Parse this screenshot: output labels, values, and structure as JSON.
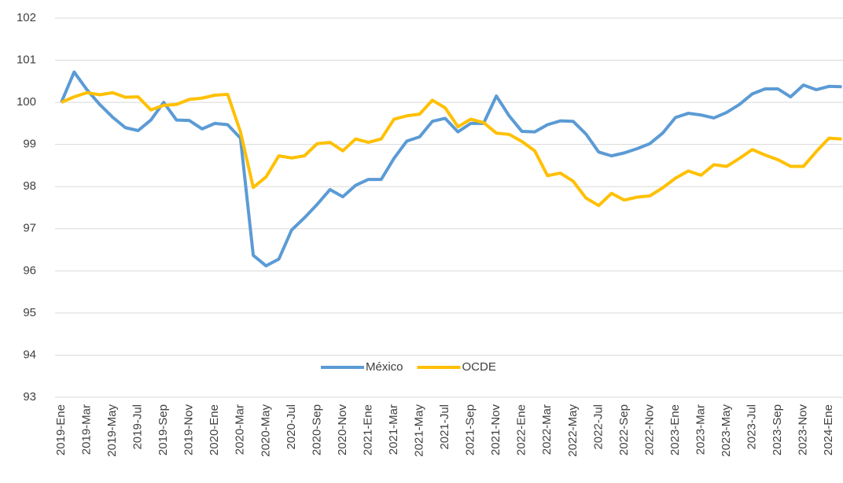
{
  "chart_data": {
    "type": "line",
    "categories": [
      "2019-Ene",
      null,
      "2019-Mar",
      null,
      "2019-May",
      null,
      "2019-Jul",
      null,
      "2019-Sep",
      null,
      "2019-Nov",
      null,
      "2020-Ene",
      null,
      "2020-Mar",
      null,
      "2020-May",
      null,
      "2020-Jul",
      null,
      "2020-Sep",
      null,
      "2020-Nov",
      null,
      "2021-Ene",
      null,
      "2021-Mar",
      null,
      "2021-May",
      null,
      "2021-Jul",
      null,
      "2021-Sep",
      null,
      "2021-Nov",
      null,
      "2022-Ene",
      null,
      "2022-Mar",
      null,
      "2022-May",
      null,
      "2022-Jul",
      null,
      "2022-Sep",
      null,
      "2022-Nov",
      null,
      "2023-Ene",
      null,
      "2023-Mar",
      null,
      "2023-May",
      null,
      "2023-Jul",
      null,
      "2023-Sep",
      null,
      "2023-Nov",
      null,
      "2024-Ene",
      null
    ],
    "series": [
      {
        "name": "México",
        "color": "#5b9bd5",
        "values": [
          100,
          100.72,
          100.3,
          99.95,
          99.65,
          99.4,
          99.33,
          99.58,
          100.0,
          99.58,
          99.57,
          99.37,
          99.5,
          99.47,
          99.15,
          96.37,
          96.12,
          96.28,
          96.97,
          97.26,
          97.58,
          97.93,
          97.76,
          98.03,
          98.17,
          98.17,
          98.67,
          99.08,
          99.18,
          99.55,
          99.62,
          99.3,
          99.5,
          99.5,
          100.15,
          99.68,
          99.31,
          99.3,
          99.47,
          99.56,
          99.55,
          99.25,
          98.82,
          98.73,
          98.8,
          98.9,
          99.02,
          99.27,
          99.64,
          99.74,
          99.7,
          99.63,
          99.76,
          99.95,
          100.2,
          100.32,
          100.32,
          100.13,
          100.41,
          100.3,
          100.38,
          100.37
        ]
      },
      {
        "name": "OCDE",
        "color": "#ffc000",
        "values": [
          100,
          100.13,
          100.23,
          100.18,
          100.23,
          100.12,
          100.13,
          99.82,
          99.93,
          99.95,
          100.07,
          100.1,
          100.17,
          100.19,
          99.3,
          97.98,
          98.23,
          98.73,
          98.68,
          98.73,
          99.02,
          99.05,
          98.85,
          99.13,
          99.05,
          99.13,
          99.6,
          99.68,
          99.72,
          100.05,
          99.87,
          99.42,
          99.6,
          99.52,
          99.27,
          99.24,
          99.07,
          98.85,
          98.26,
          98.32,
          98.13,
          97.73,
          97.55,
          97.84,
          97.68,
          97.75,
          97.78,
          97.97,
          98.2,
          98.37,
          98.27,
          98.52,
          98.48,
          98.67,
          98.88,
          98.75,
          98.64,
          98.48,
          98.48,
          98.83,
          99.15,
          99.13
        ]
      }
    ],
    "ylim": [
      93,
      102
    ],
    "yticks": [
      93,
      94,
      95,
      96,
      97,
      98,
      99,
      100,
      101,
      102
    ],
    "grid": true,
    "legend": "bottom"
  }
}
